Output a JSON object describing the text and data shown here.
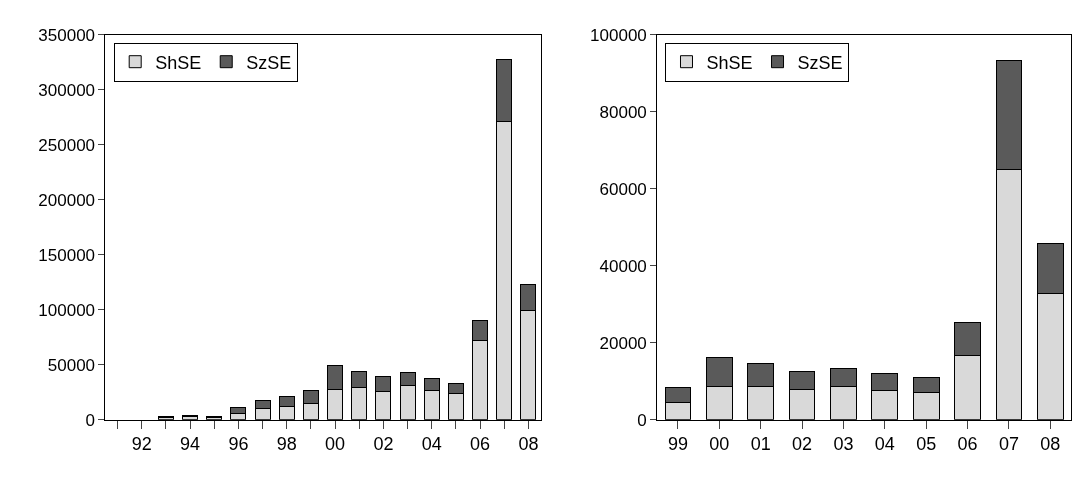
{
  "chart_data": [
    {
      "type": "bar",
      "stacked": true,
      "categories": [
        null,
        "92",
        null,
        "94",
        null,
        "96",
        null,
        "98",
        null,
        "00",
        null,
        "02",
        null,
        "04",
        null,
        "06",
        null,
        "08"
      ],
      "series": [
        {
          "name": "ShSE",
          "color": "#d9d9d9",
          "values": [
            null,
            null,
            2000,
            3000,
            2000,
            6000,
            10000,
            12000,
            15000,
            28000,
            29000,
            26000,
            31000,
            27000,
            24000,
            72000,
            271000,
            99000
          ]
        },
        {
          "name": "SzSE",
          "color": "#5a5a5a",
          "values": [
            null,
            null,
            1000,
            1000,
            1000,
            5000,
            8000,
            9000,
            12000,
            21000,
            15000,
            13000,
            12000,
            11000,
            9000,
            18000,
            57000,
            24000
          ]
        }
      ],
      "ylim": [
        0,
        350000
      ],
      "yticks": [
        0,
        50000,
        100000,
        150000,
        200000,
        250000,
        300000,
        350000
      ],
      "legend": "top left"
    },
    {
      "type": "bar",
      "stacked": true,
      "categories": [
        "99",
        "00",
        "01",
        "02",
        "03",
        "04",
        "05",
        "06",
        "07",
        "08"
      ],
      "series": [
        {
          "name": "ShSE",
          "color": "#d9d9d9",
          "values": [
            4400,
            8600,
            8700,
            7800,
            8600,
            7700,
            7100,
            16800,
            65100,
            32900
          ]
        },
        {
          "name": "SzSE",
          "color": "#5a5a5a",
          "values": [
            3900,
            7600,
            5800,
            4800,
            4800,
            4300,
            3800,
            8600,
            28300,
            13000
          ]
        }
      ],
      "ylim": [
        0,
        100000
      ],
      "yticks": [
        0,
        20000,
        40000,
        60000,
        80000,
        100000
      ],
      "legend": "top left"
    }
  ]
}
